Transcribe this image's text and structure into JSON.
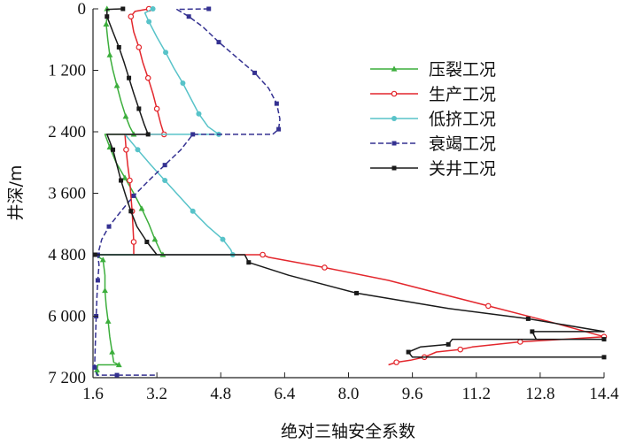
{
  "chart_data": {
    "type": "line",
    "orientation": "depth-profile",
    "xlabel": "绝对三轴安全系数",
    "ylabel": "井深/m",
    "xlim": [
      1.6,
      14.4
    ],
    "ylim": [
      0,
      7200
    ],
    "y_inverted": true,
    "x_ticks": [
      "1.6",
      "3.2",
      "4.8",
      "6.4",
      "8.0",
      "9.6",
      "11.2",
      "12.8",
      "14.4"
    ],
    "x_tick_values": [
      1.6,
      3.2,
      4.8,
      6.4,
      8.0,
      9.6,
      11.2,
      12.8,
      14.4
    ],
    "y_ticks": [
      "0",
      "1 200",
      "2 400",
      "3 600",
      "4 800",
      "6 000",
      "7 200"
    ],
    "y_tick_values": [
      0,
      1200,
      2400,
      3600,
      4800,
      6000,
      7200
    ],
    "grid": false,
    "legend_position": "right-center",
    "series": [
      {
        "name": "压裂工况",
        "color": "#3cae3c",
        "marker": "triangle",
        "dashed": false,
        "points": [
          [
            1.95,
            0
          ],
          [
            1.95,
            150
          ],
          [
            1.93,
            300
          ],
          [
            1.97,
            600
          ],
          [
            2.02,
            900
          ],
          [
            2.1,
            1200
          ],
          [
            2.2,
            1500
          ],
          [
            2.3,
            1800
          ],
          [
            2.42,
            2100
          ],
          [
            2.52,
            2300
          ],
          [
            2.62,
            2450
          ],
          [
            1.9,
            2450
          ],
          [
            2.02,
            2700
          ],
          [
            2.18,
            3000
          ],
          [
            2.4,
            3300
          ],
          [
            2.62,
            3600
          ],
          [
            2.82,
            3900
          ],
          [
            3.0,
            4200
          ],
          [
            3.15,
            4500
          ],
          [
            3.3,
            4750
          ],
          [
            3.35,
            4800
          ],
          [
            1.65,
            4800
          ],
          [
            1.85,
            4900
          ],
          [
            1.9,
            5200
          ],
          [
            1.9,
            5500
          ],
          [
            1.93,
            5800
          ],
          [
            1.98,
            6100
          ],
          [
            2.02,
            6400
          ],
          [
            2.08,
            6700
          ],
          [
            2.12,
            6900
          ],
          [
            2.25,
            6950
          ],
          [
            1.72,
            6950
          ],
          [
            1.7,
            7050
          ],
          [
            1.72,
            7150
          ]
        ]
      },
      {
        "name": "生产工况",
        "color": "#e3272d",
        "marker": "circle-open",
        "dashed": false,
        "points": [
          [
            3.0,
            0
          ],
          [
            2.65,
            50
          ],
          [
            2.55,
            150
          ],
          [
            2.62,
            450
          ],
          [
            2.75,
            750
          ],
          [
            2.85,
            1050
          ],
          [
            2.98,
            1350
          ],
          [
            3.1,
            1650
          ],
          [
            3.2,
            1950
          ],
          [
            3.3,
            2250
          ],
          [
            3.38,
            2450
          ],
          [
            2.4,
            2450
          ],
          [
            2.43,
            2750
          ],
          [
            2.47,
            3050
          ],
          [
            2.52,
            3350
          ],
          [
            2.55,
            3650
          ],
          [
            2.58,
            3950
          ],
          [
            2.6,
            4250
          ],
          [
            2.62,
            4550
          ],
          [
            2.62,
            4800
          ],
          [
            5.85,
            4800
          ],
          [
            6.0,
            4850
          ],
          [
            7.4,
            5050
          ],
          [
            9.0,
            5300
          ],
          [
            11.5,
            5800
          ],
          [
            13.0,
            6100
          ],
          [
            14.4,
            6400
          ],
          [
            13.4,
            6450
          ],
          [
            12.3,
            6500
          ],
          [
            11.1,
            6600
          ],
          [
            10.8,
            6650
          ],
          [
            10.2,
            6700
          ],
          [
            9.9,
            6800
          ],
          [
            9.55,
            6860
          ],
          [
            9.2,
            6900
          ],
          [
            9.0,
            6950
          ]
        ]
      },
      {
        "name": "低挤工况",
        "color": "#58c3c9",
        "marker": "circle",
        "dashed": false,
        "points": [
          [
            3.1,
            0
          ],
          [
            2.9,
            80
          ],
          [
            3.0,
            250
          ],
          [
            3.2,
            550
          ],
          [
            3.42,
            850
          ],
          [
            3.62,
            1150
          ],
          [
            3.85,
            1450
          ],
          [
            4.05,
            1750
          ],
          [
            4.25,
            2050
          ],
          [
            4.48,
            2300
          ],
          [
            4.75,
            2450
          ],
          [
            2.4,
            2450
          ],
          [
            2.72,
            2750
          ],
          [
            3.05,
            3050
          ],
          [
            3.4,
            3350
          ],
          [
            3.75,
            3650
          ],
          [
            4.1,
            3950
          ],
          [
            4.48,
            4250
          ],
          [
            4.85,
            4500
          ],
          [
            5.05,
            4700
          ],
          [
            5.1,
            4800
          ],
          [
            1.65,
            4800
          ]
        ]
      },
      {
        "name": "衰竭工况",
        "color": "#343191",
        "marker": "square",
        "dashed": true,
        "points": [
          [
            4.5,
            0
          ],
          [
            3.7,
            10
          ],
          [
            4.0,
            150
          ],
          [
            4.35,
            350
          ],
          [
            4.75,
            650
          ],
          [
            5.2,
            950
          ],
          [
            5.65,
            1250
          ],
          [
            6.0,
            1550
          ],
          [
            6.2,
            1850
          ],
          [
            6.28,
            2150
          ],
          [
            6.25,
            2350
          ],
          [
            6.1,
            2450
          ],
          [
            4.1,
            2450
          ],
          [
            3.8,
            2750
          ],
          [
            3.4,
            3050
          ],
          [
            3.0,
            3350
          ],
          [
            2.62,
            3650
          ],
          [
            2.3,
            3950
          ],
          [
            2.0,
            4250
          ],
          [
            1.82,
            4500
          ],
          [
            1.72,
            4800
          ],
          [
            1.75,
            5000
          ],
          [
            1.72,
            5300
          ],
          [
            1.7,
            5600
          ],
          [
            1.68,
            6000
          ],
          [
            1.66,
            6500
          ],
          [
            1.64,
            7000
          ],
          [
            1.7,
            7150
          ],
          [
            2.2,
            7150
          ],
          [
            3.2,
            7150
          ]
        ]
      },
      {
        "name": "关井工况",
        "color": "#1a1a1a",
        "marker": "square",
        "dashed": false,
        "points": [
          [
            2.35,
            0
          ],
          [
            1.95,
            10
          ],
          [
            1.95,
            150
          ],
          [
            2.1,
            450
          ],
          [
            2.25,
            750
          ],
          [
            2.38,
            1050
          ],
          [
            2.5,
            1350
          ],
          [
            2.62,
            1650
          ],
          [
            2.75,
            1950
          ],
          [
            2.88,
            2250
          ],
          [
            2.98,
            2450
          ],
          [
            1.95,
            2450
          ],
          [
            2.1,
            2750
          ],
          [
            2.2,
            3050
          ],
          [
            2.3,
            3350
          ],
          [
            2.42,
            3650
          ],
          [
            2.55,
            3950
          ],
          [
            2.7,
            4250
          ],
          [
            2.95,
            4550
          ],
          [
            3.2,
            4800
          ],
          [
            1.65,
            4800
          ],
          [
            5.4,
            4800
          ],
          [
            5.5,
            4950
          ],
          [
            6.5,
            5200
          ],
          [
            8.2,
            5550
          ],
          [
            10.5,
            5850
          ],
          [
            12.5,
            6050
          ],
          [
            14.4,
            6300
          ],
          [
            12.6,
            6300
          ],
          [
            12.7,
            6450
          ],
          [
            14.4,
            6450
          ],
          [
            10.6,
            6450
          ],
          [
            10.5,
            6550
          ],
          [
            9.8,
            6600
          ],
          [
            9.5,
            6700
          ],
          [
            9.6,
            6800
          ],
          [
            14.4,
            6800
          ]
        ]
      }
    ]
  }
}
